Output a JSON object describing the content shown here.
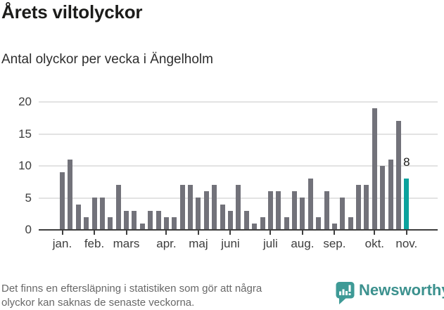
{
  "title": "Årets viltolyckor",
  "subtitle": "Antal olyckor per vecka i Ängelholm",
  "footer": {
    "note_line1": "Det finns en eftersläpning i statistiken som gör att några",
    "note_line2": "olyckor kan saknas de senaste veckorna.",
    "brand": "Newsworthy"
  },
  "colors": {
    "bar": "#72727a",
    "highlight": "#0ba29d",
    "grid": "#e3e3e3",
    "axis": "#3f3f3f",
    "brand_teal": "#3e9a96"
  },
  "chart_data": {
    "type": "bar",
    "x_unit": "week",
    "values": [
      9,
      11,
      4,
      2,
      5,
      5,
      2,
      7,
      3,
      3,
      1,
      3,
      3,
      2,
      2,
      7,
      7,
      5,
      6,
      7,
      4,
      3,
      7,
      3,
      1,
      2,
      6,
      6,
      2,
      6,
      5,
      8,
      2,
      6,
      1,
      5,
      2,
      7,
      7,
      19,
      10,
      11,
      17,
      8
    ],
    "highlight_index": 43,
    "highlight_label": "8",
    "y_ticks": [
      0,
      5,
      10,
      15,
      20
    ],
    "ylim": [
      0,
      20
    ],
    "grid": true,
    "month_ticks": [
      {
        "label": "jan.",
        "week": 1
      },
      {
        "label": "feb.",
        "week": 5
      },
      {
        "label": "mars",
        "week": 9
      },
      {
        "label": "apr.",
        "week": 14
      },
      {
        "label": "maj",
        "week": 18
      },
      {
        "label": "juni",
        "week": 22
      },
      {
        "label": "juli",
        "week": 27
      },
      {
        "label": "aug.",
        "week": 31
      },
      {
        "label": "sep.",
        "week": 35
      },
      {
        "label": "okt.",
        "week": 40
      },
      {
        "label": "nov.",
        "week": 44
      }
    ]
  }
}
